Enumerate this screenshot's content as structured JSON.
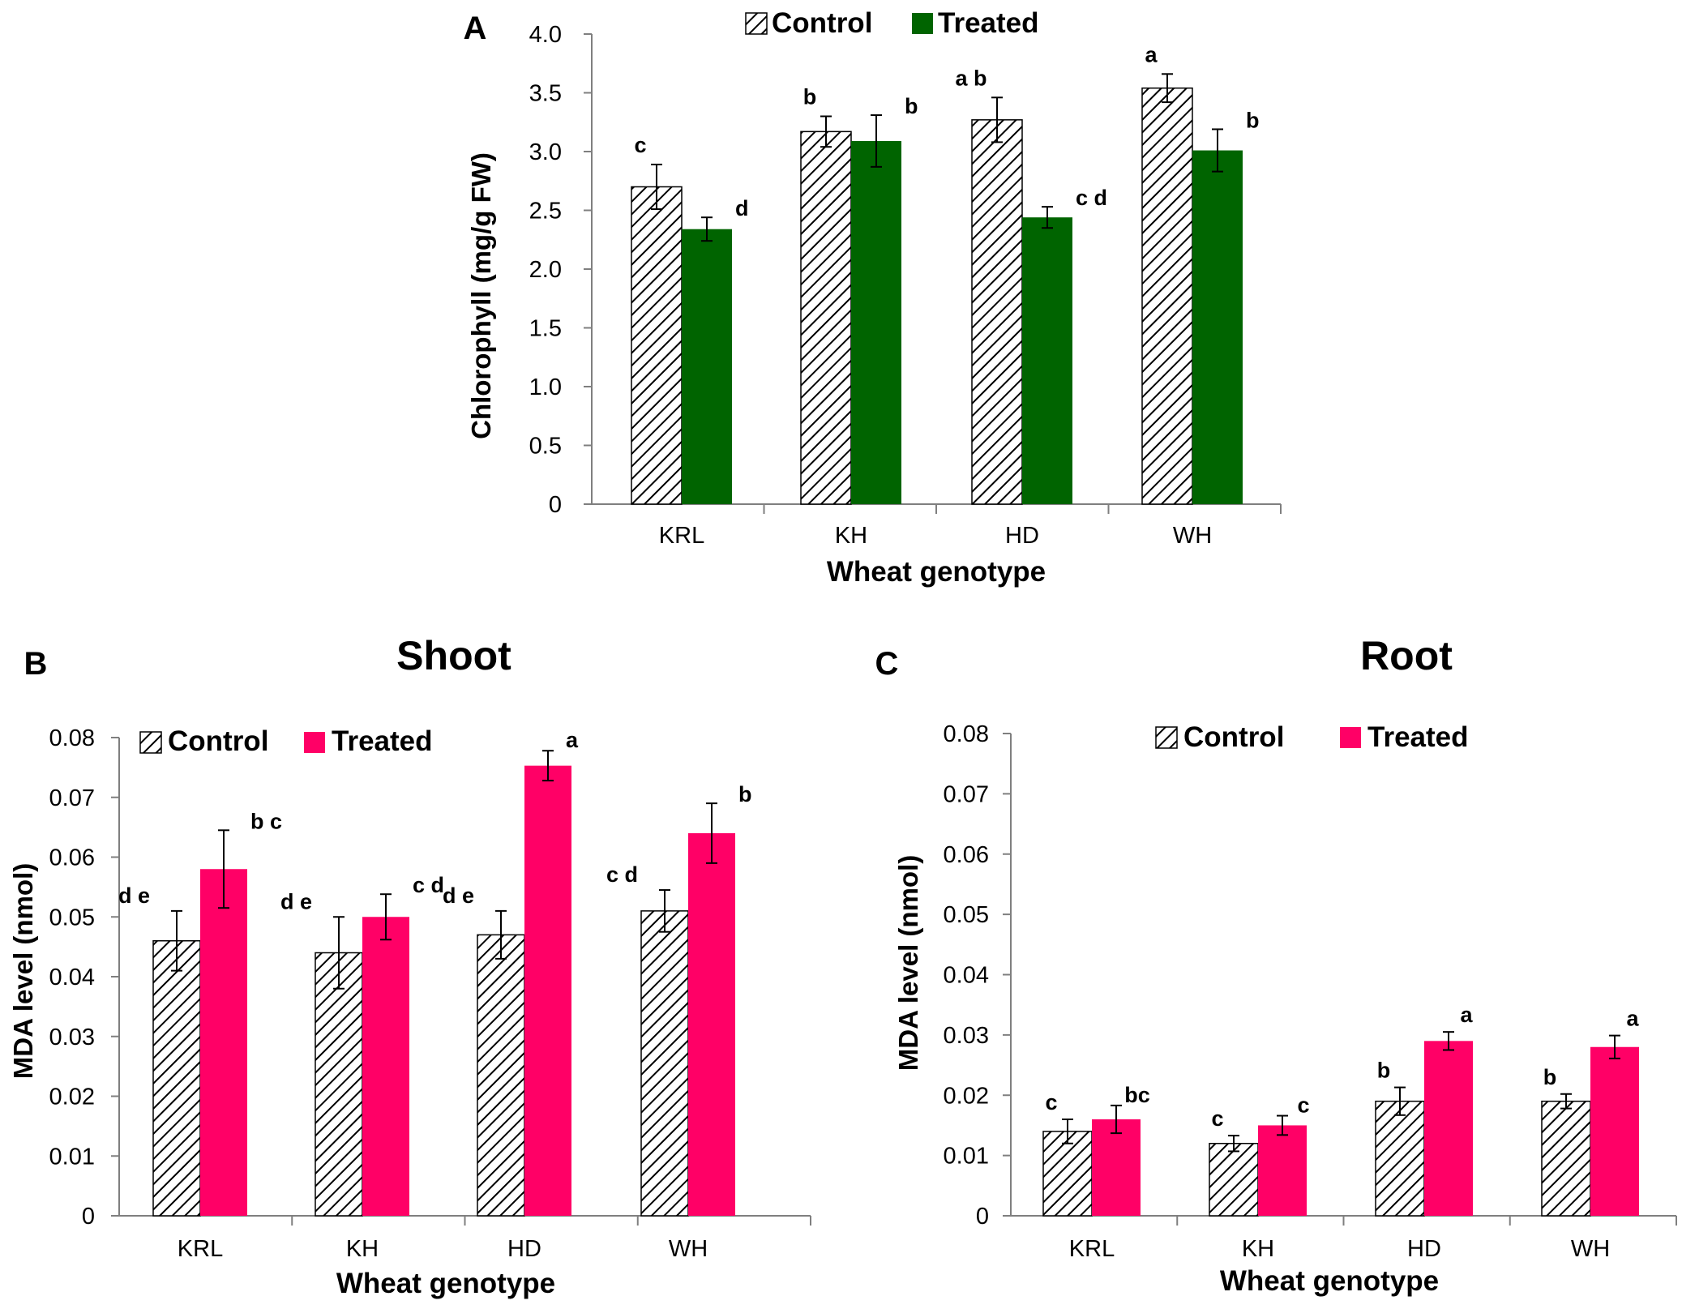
{
  "colors": {
    "axis": "#7f7f7f",
    "hatch": "#000000",
    "treated_green": "#006400",
    "treated_pink": "#ff0066"
  },
  "chart_data": [
    {
      "id": "A",
      "panel_letter": "A",
      "type": "bar",
      "title": "",
      "xlabel": "Wheat genotype",
      "ylabel": "Chlorophyll (mg/g FW)",
      "categories": [
        "KRL",
        "KH",
        "HD",
        "WH"
      ],
      "ylim": [
        0,
        4.0
      ],
      "yticks": [
        0,
        0.5,
        1.0,
        1.5,
        2.0,
        2.5,
        3.0,
        3.5,
        4.0
      ],
      "ytick_labels": [
        "0",
        "0.5",
        "1.0",
        "1.5",
        "2.0",
        "2.5",
        "3.0",
        "3.5",
        "4.0"
      ],
      "legend_position": "top",
      "series": [
        {
          "name": "Control",
          "pattern": "hatch",
          "values": [
            2.7,
            3.17,
            3.27,
            3.54
          ],
          "errors": [
            0.19,
            0.13,
            0.19,
            0.12
          ],
          "labels": [
            "c",
            "b",
            "a b",
            "a"
          ]
        },
        {
          "name": "Treated",
          "color": "#006400",
          "values": [
            2.34,
            3.09,
            2.44,
            3.01
          ],
          "errors": [
            0.1,
            0.22,
            0.09,
            0.18
          ],
          "labels": [
            "d",
            "b",
            "c d",
            "b"
          ]
        }
      ]
    },
    {
      "id": "B",
      "panel_letter": "B",
      "type": "bar",
      "title": "Shoot",
      "xlabel": "Wheat genotype",
      "ylabel": "MDA level (nmol)",
      "categories": [
        "KRL",
        "KH",
        "HD",
        "WH"
      ],
      "ylim": [
        0,
        0.08
      ],
      "yticks": [
        0,
        0.01,
        0.02,
        0.03,
        0.04,
        0.05,
        0.06,
        0.07,
        0.08
      ],
      "ytick_labels": [
        "0",
        "0.01",
        "0.02",
        "0.03",
        "0.04",
        "0.05",
        "0.06",
        "0.07",
        "0.08"
      ],
      "legend_position": "top-left",
      "series": [
        {
          "name": "Control",
          "pattern": "hatch",
          "values": [
            0.046,
            0.044,
            0.047,
            0.051
          ],
          "errors": [
            0.005,
            0.006,
            0.004,
            0.0035
          ],
          "labels": [
            "d e",
            "d e",
            "d e",
            "c d"
          ]
        },
        {
          "name": "Treated",
          "color": "#ff0066",
          "values": [
            0.058,
            0.05,
            0.0753,
            0.064
          ],
          "errors": [
            0.0065,
            0.0038,
            0.0025,
            0.005
          ],
          "labels": [
            "b c",
            "c d",
            "a",
            "b"
          ]
        }
      ]
    },
    {
      "id": "C",
      "panel_letter": "C",
      "type": "bar",
      "title": "Root",
      "xlabel": "Wheat genotype",
      "ylabel": "MDA level (nmol)",
      "categories": [
        "KRL",
        "KH",
        "HD",
        "WH"
      ],
      "ylim": [
        0,
        0.08
      ],
      "yticks": [
        0,
        0.01,
        0.02,
        0.03,
        0.04,
        0.05,
        0.06,
        0.07,
        0.08
      ],
      "ytick_labels": [
        "0",
        "0.01",
        "0.02",
        "0.03",
        "0.04",
        "0.05",
        "0.06",
        "0.07",
        "0.08"
      ],
      "legend_position": "top",
      "series": [
        {
          "name": "Control",
          "pattern": "hatch",
          "values": [
            0.014,
            0.012,
            0.019,
            0.019
          ],
          "errors": [
            0.002,
            0.0013,
            0.0023,
            0.0012
          ],
          "labels": [
            "c",
            "c",
            "b",
            "b"
          ]
        },
        {
          "name": "Treated",
          "color": "#ff0066",
          "values": [
            0.016,
            0.015,
            0.029,
            0.028
          ],
          "errors": [
            0.0023,
            0.0016,
            0.0015,
            0.0019
          ],
          "labels": [
            "bc",
            "c",
            "a",
            "a"
          ]
        }
      ]
    }
  ]
}
